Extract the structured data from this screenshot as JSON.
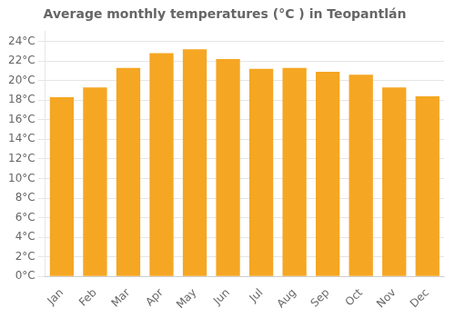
{
  "chart_data": {
    "type": "bar",
    "title": "Average monthly temperatures (°C ) in Teopantlán",
    "categories": [
      "Jan",
      "Feb",
      "Mar",
      "Apr",
      "May",
      "Jun",
      "Jul",
      "Aug",
      "Sep",
      "Oct",
      "Nov",
      "Dec"
    ],
    "values": [
      18.3,
      19.3,
      21.3,
      22.8,
      23.2,
      22.2,
      21.2,
      21.3,
      20.9,
      20.6,
      19.3,
      18.4
    ],
    "color": "#F5A623",
    "ylim": [
      0,
      25
    ],
    "yticks": [
      {
        "value": 0,
        "label": "0°C"
      },
      {
        "value": 2,
        "label": "2°C"
      },
      {
        "value": 4,
        "label": "4°C"
      },
      {
        "value": 6,
        "label": "6°C"
      },
      {
        "value": 8,
        "label": "8°C"
      },
      {
        "value": 10,
        "label": "10°C"
      },
      {
        "value": 12,
        "label": "12°C"
      },
      {
        "value": 14,
        "label": "14°C"
      },
      {
        "value": 16,
        "label": "16°C"
      },
      {
        "value": 18,
        "label": "18°C"
      },
      {
        "value": 20,
        "label": "20°C"
      },
      {
        "value": 22,
        "label": "22°C"
      },
      {
        "value": 24,
        "label": "24°C"
      }
    ],
    "grid": true
  }
}
